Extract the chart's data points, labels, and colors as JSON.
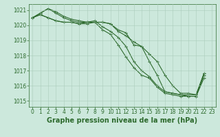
{
  "x": [
    0,
    1,
    2,
    3,
    4,
    5,
    6,
    7,
    8,
    9,
    10,
    11,
    12,
    13,
    14,
    15,
    16,
    17,
    18,
    19,
    20,
    21,
    22,
    23
  ],
  "lines": [
    [
      1020.5,
      1020.8,
      1021.1,
      1020.8,
      1020.5,
      1020.3,
      1020.2,
      1020.2,
      1020.2,
      1019.7,
      1019.4,
      1018.7,
      1017.9,
      1017.2,
      1016.7,
      1016.5,
      1015.9,
      1015.5,
      1015.4,
      1015.3,
      1015.3,
      1015.3,
      1016.7,
      null
    ],
    [
      1020.5,
      1020.8,
      1021.1,
      1020.9,
      1020.6,
      1020.4,
      1020.3,
      1020.2,
      1020.3,
      1019.9,
      1019.6,
      1019.2,
      1018.6,
      1017.6,
      1017.0,
      1016.6,
      1016.0,
      1015.6,
      1015.5,
      1015.4,
      1015.3,
      1015.3,
      1016.5,
      null
    ],
    [
      1020.5,
      1020.7,
      1020.5,
      1020.3,
      1020.2,
      1020.2,
      1020.1,
      1020.2,
      1020.2,
      1020.2,
      1020.1,
      1019.6,
      1019.3,
      1018.9,
      1018.6,
      1017.6,
      1016.7,
      1015.6,
      1015.5,
      1015.4,
      1015.4,
      1015.4,
      1016.8,
      null
    ],
    [
      1020.5,
      1020.7,
      1020.5,
      1020.3,
      1020.2,
      1020.2,
      1020.1,
      1020.1,
      1020.2,
      1020.2,
      1020.1,
      1019.7,
      1019.5,
      1018.7,
      1018.6,
      1018.1,
      1017.6,
      1016.7,
      1016.0,
      1015.5,
      1015.5,
      1015.4,
      1016.8,
      null
    ]
  ],
  "line_color": "#2d6a2d",
  "marker": "+",
  "markersize": 3,
  "markeredgewidth": 0.8,
  "ylim": [
    1014.6,
    1021.4
  ],
  "yticks": [
    1015,
    1016,
    1017,
    1018,
    1019,
    1020,
    1021
  ],
  "xlim": [
    -0.5,
    23.5
  ],
  "xticks": [
    0,
    1,
    2,
    3,
    4,
    5,
    6,
    7,
    8,
    9,
    10,
    11,
    12,
    13,
    14,
    15,
    16,
    17,
    18,
    19,
    20,
    21,
    22,
    23
  ],
  "xlabel": "Graphe pression niveau de la mer (hPa)",
  "xlabel_fontsize": 7,
  "background_color": "#cce8dc",
  "grid_color": "#aaccbb",
  "axis_color": "#2d6a2d",
  "tick_fontsize": 5.5,
  "linewidth": 0.8,
  "fig_width": 3.2,
  "fig_height": 2.0,
  "dpi": 100
}
